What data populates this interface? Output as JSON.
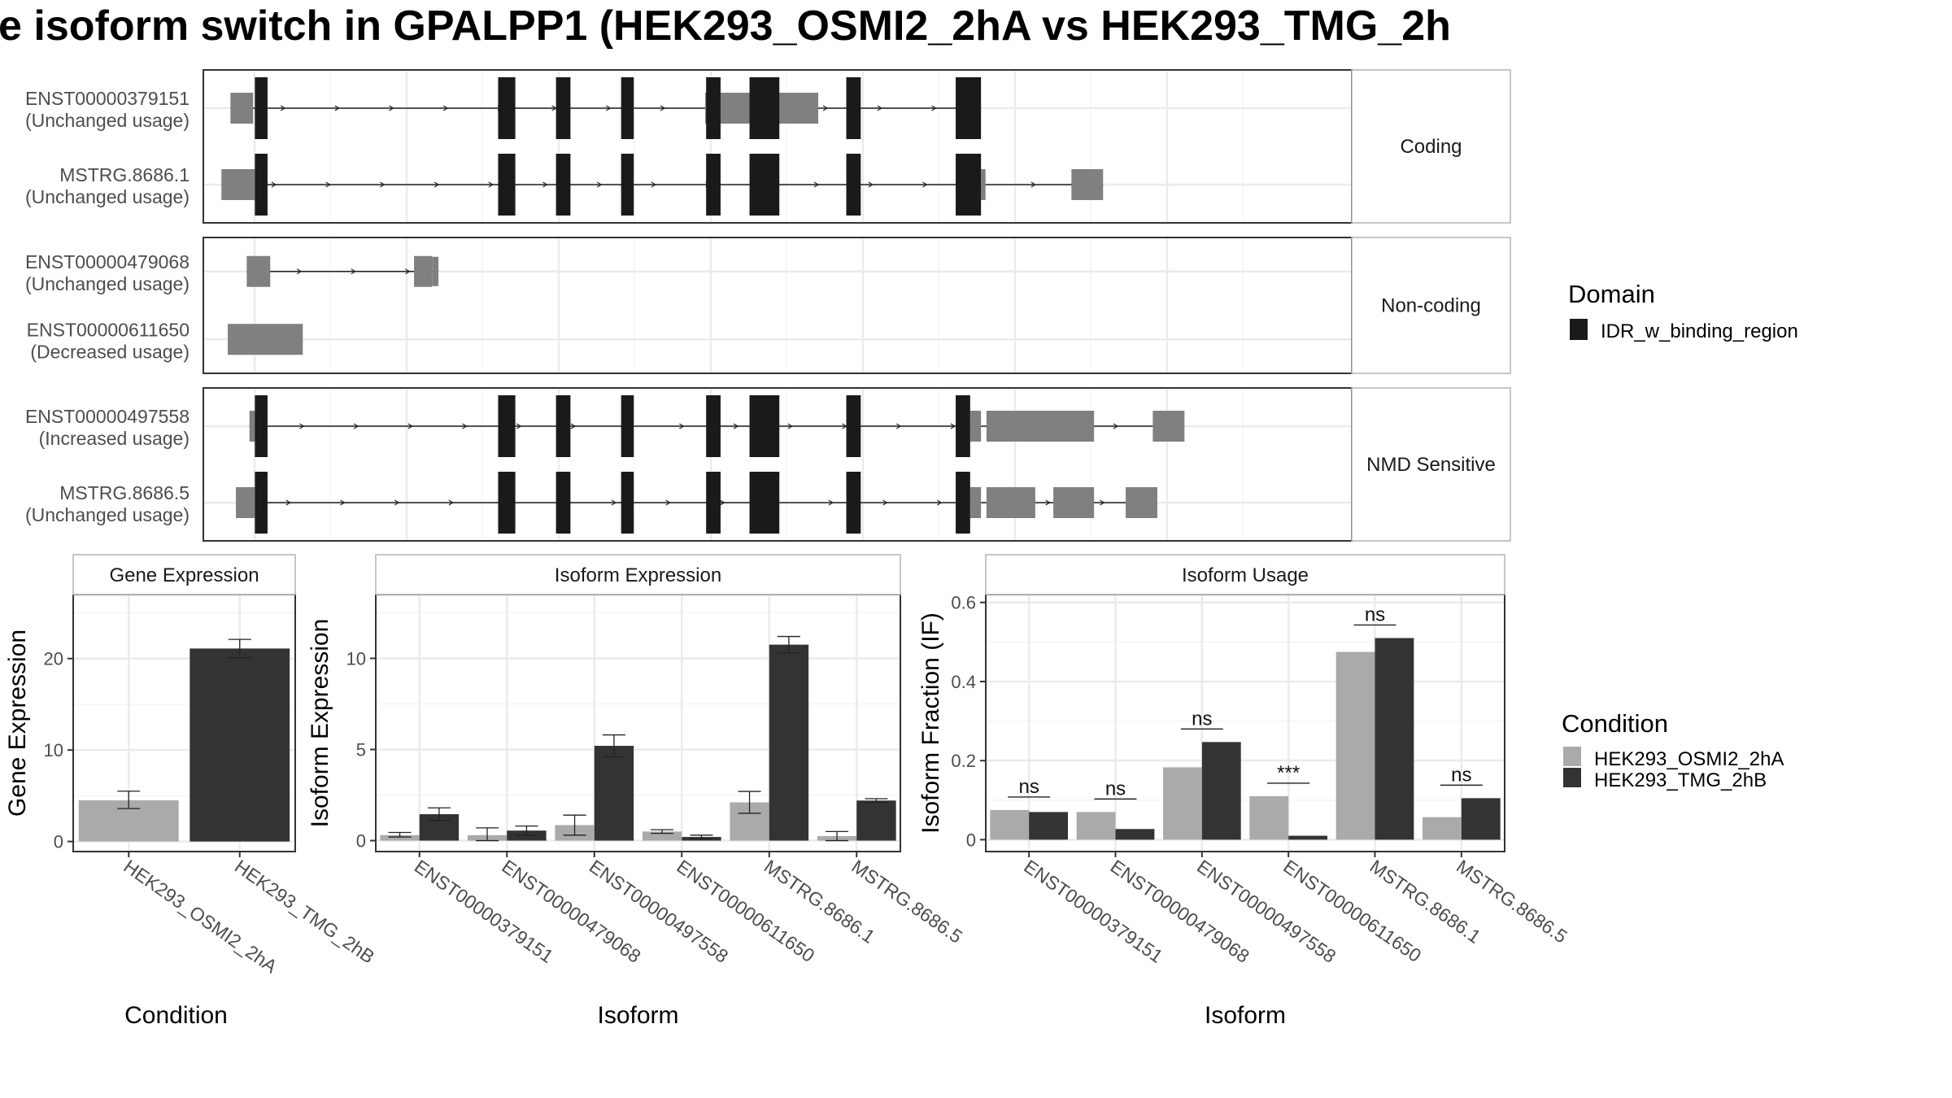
{
  "title": "e isoform switch in GPALPP1 (HEK293_OSMI2_2hA vs HEK293_TMG_2h",
  "colors": {
    "domain": "#1a1a1a",
    "utr": "#808080",
    "condition1": "#aaaaaa",
    "condition2": "#333333",
    "grid": "#ebebeb",
    "panel_border": "#333333",
    "strip_border": "#b3b3b3"
  },
  "structure": {
    "groups": [
      {
        "label": "Coding",
        "transcripts": [
          {
            "id": "ENST00000379151",
            "usage": "(Unchanged usage)",
            "utr": [
              [
                30,
                55
              ],
              [
                555,
                680
              ]
            ],
            "domain": [
              [
                57,
                71
              ],
              [
                326,
                345
              ],
              [
                390,
                406
              ],
              [
                462,
                476
              ],
              [
                556,
                572
              ],
              [
                604,
                637
              ],
              [
                711,
                727
              ],
              [
                832,
                860
              ]
            ]
          },
          {
            "id": "MSTRG.8686.1",
            "usage": "(Unchanged usage)",
            "utr": [
              [
                20,
                57
              ],
              [
                860,
                865
              ],
              [
                960,
                995
              ]
            ],
            "domain": [
              [
                57,
                71
              ],
              [
                326,
                345
              ],
              [
                390,
                406
              ],
              [
                462,
                476
              ],
              [
                556,
                572
              ],
              [
                604,
                637
              ],
              [
                711,
                727
              ],
              [
                832,
                860
              ]
            ]
          }
        ]
      },
      {
        "label": "Non-coding",
        "transcripts": [
          {
            "id": "ENST00000479068",
            "usage": "(Unchanged usage)",
            "utr": [
              [
                48,
                74
              ],
              [
                233,
                253
              ],
              [
                253,
                260
              ]
            ],
            "domain": []
          },
          {
            "id": "ENST00000611650",
            "usage": "(Decreased usage)",
            "utr": [
              [
                27,
                110
              ]
            ],
            "domain": []
          }
        ]
      },
      {
        "label": "NMD Sensitive",
        "transcripts": [
          {
            "id": "ENST00000497558",
            "usage": "(Increased usage)",
            "utr": [
              [
                51,
                60
              ],
              [
                848,
                860
              ],
              [
                866,
                985
              ],
              [
                1050,
                1085
              ]
            ],
            "domain": [
              [
                57,
                71
              ],
              [
                326,
                345
              ],
              [
                390,
                406
              ],
              [
                462,
                476
              ],
              [
                556,
                572
              ],
              [
                604,
                637
              ],
              [
                711,
                727
              ],
              [
                832,
                848
              ]
            ]
          },
          {
            "id": "MSTRG.8686.5",
            "usage": "(Unchanged usage)",
            "utr": [
              [
                36,
                57
              ],
              [
                848,
                860
              ],
              [
                866,
                920
              ],
              [
                940,
                985
              ],
              [
                1020,
                1055
              ]
            ],
            "domain": [
              [
                57,
                71
              ],
              [
                326,
                345
              ],
              [
                390,
                406
              ],
              [
                462,
                476
              ],
              [
                556,
                572
              ],
              [
                604,
                637
              ],
              [
                711,
                727
              ],
              [
                832,
                848
              ]
            ]
          }
        ]
      }
    ]
  },
  "legend_domain": {
    "title": "Domain",
    "items": [
      "IDR_w_binding_region"
    ]
  },
  "legend_condition": {
    "title": "Condition",
    "items": [
      "HEK293_OSMI2_2hA",
      "HEK293_TMG_2hB"
    ]
  },
  "chart_data": [
    {
      "type": "bar",
      "title": "Gene Expression",
      "xlabel": "Condition",
      "ylabel": "Gene Expression",
      "categories": [
        "HEK293_OSMI2_2hA",
        "HEK293_TMG_2hB"
      ],
      "values": [
        4.5,
        21.1
      ],
      "errors": [
        [
          3.6,
          5.5
        ],
        [
          20.1,
          22.1
        ]
      ],
      "yticks": [
        0,
        10,
        20
      ],
      "ylim": [
        -1.1,
        27.0
      ]
    },
    {
      "type": "bar",
      "title": "Isoform Expression",
      "xlabel": "Isoform",
      "ylabel": "Isoform Expression",
      "categories": [
        "ENST00000379151",
        "ENST00000479068",
        "ENST00000497558",
        "ENST00000611650",
        "MSTRG.8686.1",
        "MSTRG.8686.5"
      ],
      "series": [
        {
          "name": "HEK293_OSMI2_2hA",
          "values": [
            0.3,
            0.3,
            0.85,
            0.5,
            2.1,
            0.25
          ],
          "errors": [
            [
              0.2,
              0.45
            ],
            [
              0.0,
              0.7
            ],
            [
              0.3,
              1.4
            ],
            [
              0.4,
              0.6
            ],
            [
              1.5,
              2.7
            ],
            [
              0.0,
              0.5
            ]
          ]
        },
        {
          "name": "HEK293_TMG_2hB",
          "values": [
            1.45,
            0.55,
            5.2,
            0.2,
            10.75,
            2.2
          ],
          "errors": [
            [
              1.1,
              1.8
            ],
            [
              0.3,
              0.8
            ],
            [
              4.6,
              5.8
            ],
            [
              0.1,
              0.3
            ],
            [
              10.3,
              11.2
            ],
            [
              2.1,
              2.3
            ]
          ]
        }
      ],
      "yticks": [
        0,
        5,
        10
      ],
      "ylim": [
        -0.6,
        13.5
      ]
    },
    {
      "type": "bar",
      "title": "Isoform Usage",
      "xlabel": "Isoform",
      "ylabel": "Isoform Fraction (IF)",
      "categories": [
        "ENST00000379151",
        "ENST00000479068",
        "ENST00000497558",
        "ENST00000611650",
        "MSTRG.8686.1",
        "MSTRG.8686.5"
      ],
      "series": [
        {
          "name": "HEK293_OSMI2_2hA",
          "values": [
            0.075,
            0.07,
            0.183,
            0.11,
            0.475,
            0.057
          ]
        },
        {
          "name": "HEK293_TMG_2hB",
          "values": [
            0.07,
            0.027,
            0.247,
            0.01,
            0.51,
            0.105
          ]
        }
      ],
      "significance": [
        "ns",
        "ns",
        "ns",
        "***",
        "ns",
        "ns"
      ],
      "yticks": [
        0.0,
        0.2,
        0.4,
        0.6
      ],
      "ylim": [
        -0.03,
        0.62
      ]
    }
  ]
}
